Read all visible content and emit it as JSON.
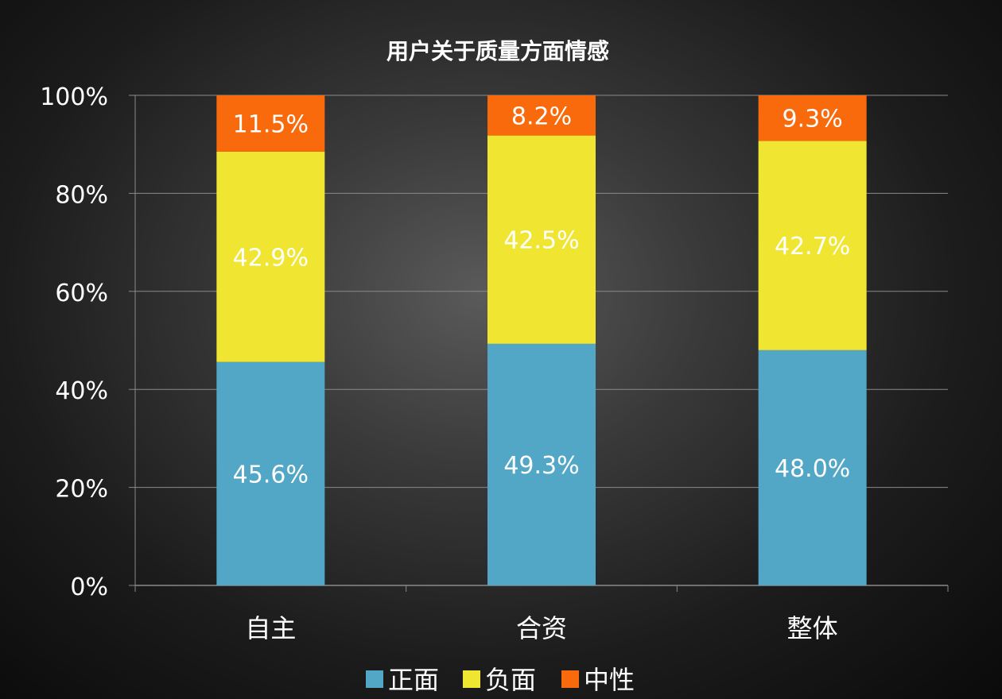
{
  "chart_data": {
    "type": "bar",
    "stacked": true,
    "title": "用户关于质量方面情感",
    "categories": [
      "自主",
      "合资",
      "整体"
    ],
    "series": [
      {
        "name": "正面",
        "values": [
          45.6,
          49.3,
          48.0
        ],
        "labels": [
          "45.6%",
          "49.3%",
          "48.0%"
        ],
        "color": "#52a6c6"
      },
      {
        "name": "负面",
        "values": [
          42.9,
          42.5,
          42.7
        ],
        "labels": [
          "42.9%",
          "42.5%",
          "42.7%"
        ],
        "color": "#f0e632"
      },
      {
        "name": "中性",
        "values": [
          11.5,
          8.2,
          9.3
        ],
        "labels": [
          "11.5%",
          "8.2%",
          "9.3%"
        ],
        "color": "#f86a0c"
      }
    ],
    "ylim": [
      0,
      100
    ],
    "yticks": [
      "0%",
      "20%",
      "40%",
      "60%",
      "80%",
      "100%"
    ],
    "grid": true,
    "legend_position": "bottom",
    "colors": {
      "grid": "#8a8a8a",
      "text": "#ffffff"
    }
  }
}
